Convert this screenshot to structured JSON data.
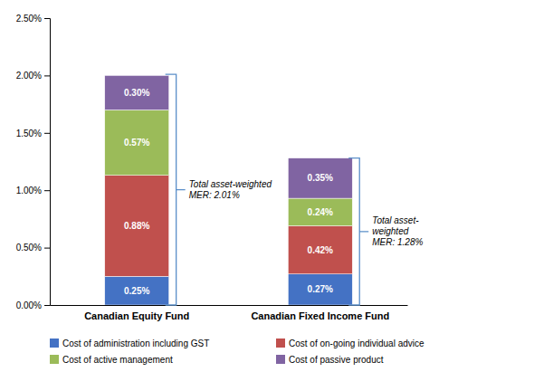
{
  "chart_data": {
    "type": "bar",
    "stacked": true,
    "data_labels": true,
    "grid": false,
    "legend": "bottom",
    "categories": [
      "Canadian Equity Fund",
      "Canadian Fixed Income Fund"
    ],
    "series": [
      {
        "name": "Cost of administration including GST",
        "color": "#4472C4",
        "values": [
          0.25,
          0.27
        ],
        "value_labels": [
          "0.25%",
          "0.27%"
        ]
      },
      {
        "name": "Cost of on-going individual advice",
        "color": "#C0504D",
        "values": [
          0.88,
          0.42
        ],
        "value_labels": [
          "0.88%",
          "0.42%"
        ]
      },
      {
        "name": "Cost of active management",
        "color": "#9BBB59",
        "values": [
          0.57,
          0.24
        ],
        "value_labels": [
          "0.57%",
          "0.24%"
        ]
      },
      {
        "name": "Cost of passive product",
        "color": "#8064A2",
        "values": [
          0.3,
          0.35
        ],
        "value_labels": [
          "0.30%",
          "0.35%"
        ]
      }
    ],
    "totals": [
      2.01,
      1.28
    ],
    "total_labels": [
      "Total asset-weighted\nMER: 2.01%",
      "Total asset-\nweighted\nMER: 1.28%"
    ],
    "ylim": [
      0,
      2.5
    ],
    "yticks": [
      {
        "value": 0,
        "label": "0.00%"
      },
      {
        "value": 0.5,
        "label": "0.50%"
      },
      {
        "value": 1.0,
        "label": "1.00%"
      },
      {
        "value": 1.5,
        "label": "1.50%"
      },
      {
        "value": 2.0,
        "label": "2.00%"
      },
      {
        "value": 2.5,
        "label": "2.50%"
      }
    ]
  }
}
